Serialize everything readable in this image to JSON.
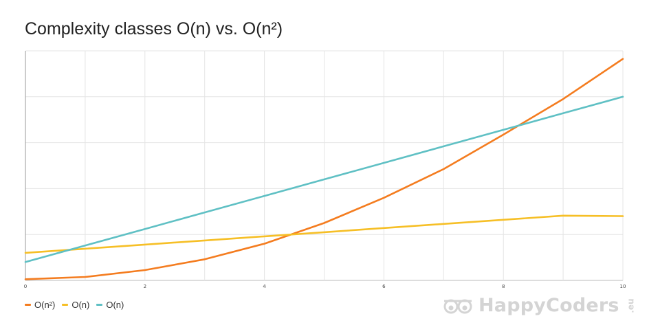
{
  "chart_data": {
    "type": "line",
    "title": "Complexity classes O(n) vs. O(n²)",
    "xlabel": "",
    "ylabel": "",
    "xlim": [
      0,
      10
    ],
    "ylim": [
      0,
      100
    ],
    "x_ticks": [
      "0",
      "2",
      "4",
      "6",
      "8",
      "10"
    ],
    "x": [
      0,
      1,
      2,
      3,
      4,
      5,
      6,
      7,
      8,
      9,
      10
    ],
    "grid": true,
    "legend_position": "bottom-left",
    "series": [
      {
        "name": "O(n²)",
        "color": "#f47c1f",
        "values": [
          0.5,
          1.5,
          4.5,
          9.2,
          16,
          25,
          36,
          48.5,
          63.5,
          79,
          96.5
        ]
      },
      {
        "name": "O(n)",
        "color": "#f6bf26",
        "values": [
          12,
          13.8,
          15.6,
          17.4,
          19.2,
          21,
          22.8,
          24.6,
          26.4,
          28.2,
          28
        ]
      },
      {
        "name": "O(n)",
        "color": "#5fc0c4",
        "values": [
          8,
          15.2,
          22.4,
          29.6,
          36.8,
          44,
          51.2,
          58.4,
          65.6,
          72.8,
          80
        ]
      }
    ]
  },
  "legend": {
    "items": [
      {
        "label": "O(n²)",
        "color": "#f47c1f"
      },
      {
        "label": "O(n)",
        "color": "#f6bf26"
      },
      {
        "label": "O(n)",
        "color": "#5fc0c4"
      }
    ]
  },
  "brand": {
    "name": "HappyCoders",
    "tld": ".eu",
    "logo_icon": "glasses-icon"
  }
}
